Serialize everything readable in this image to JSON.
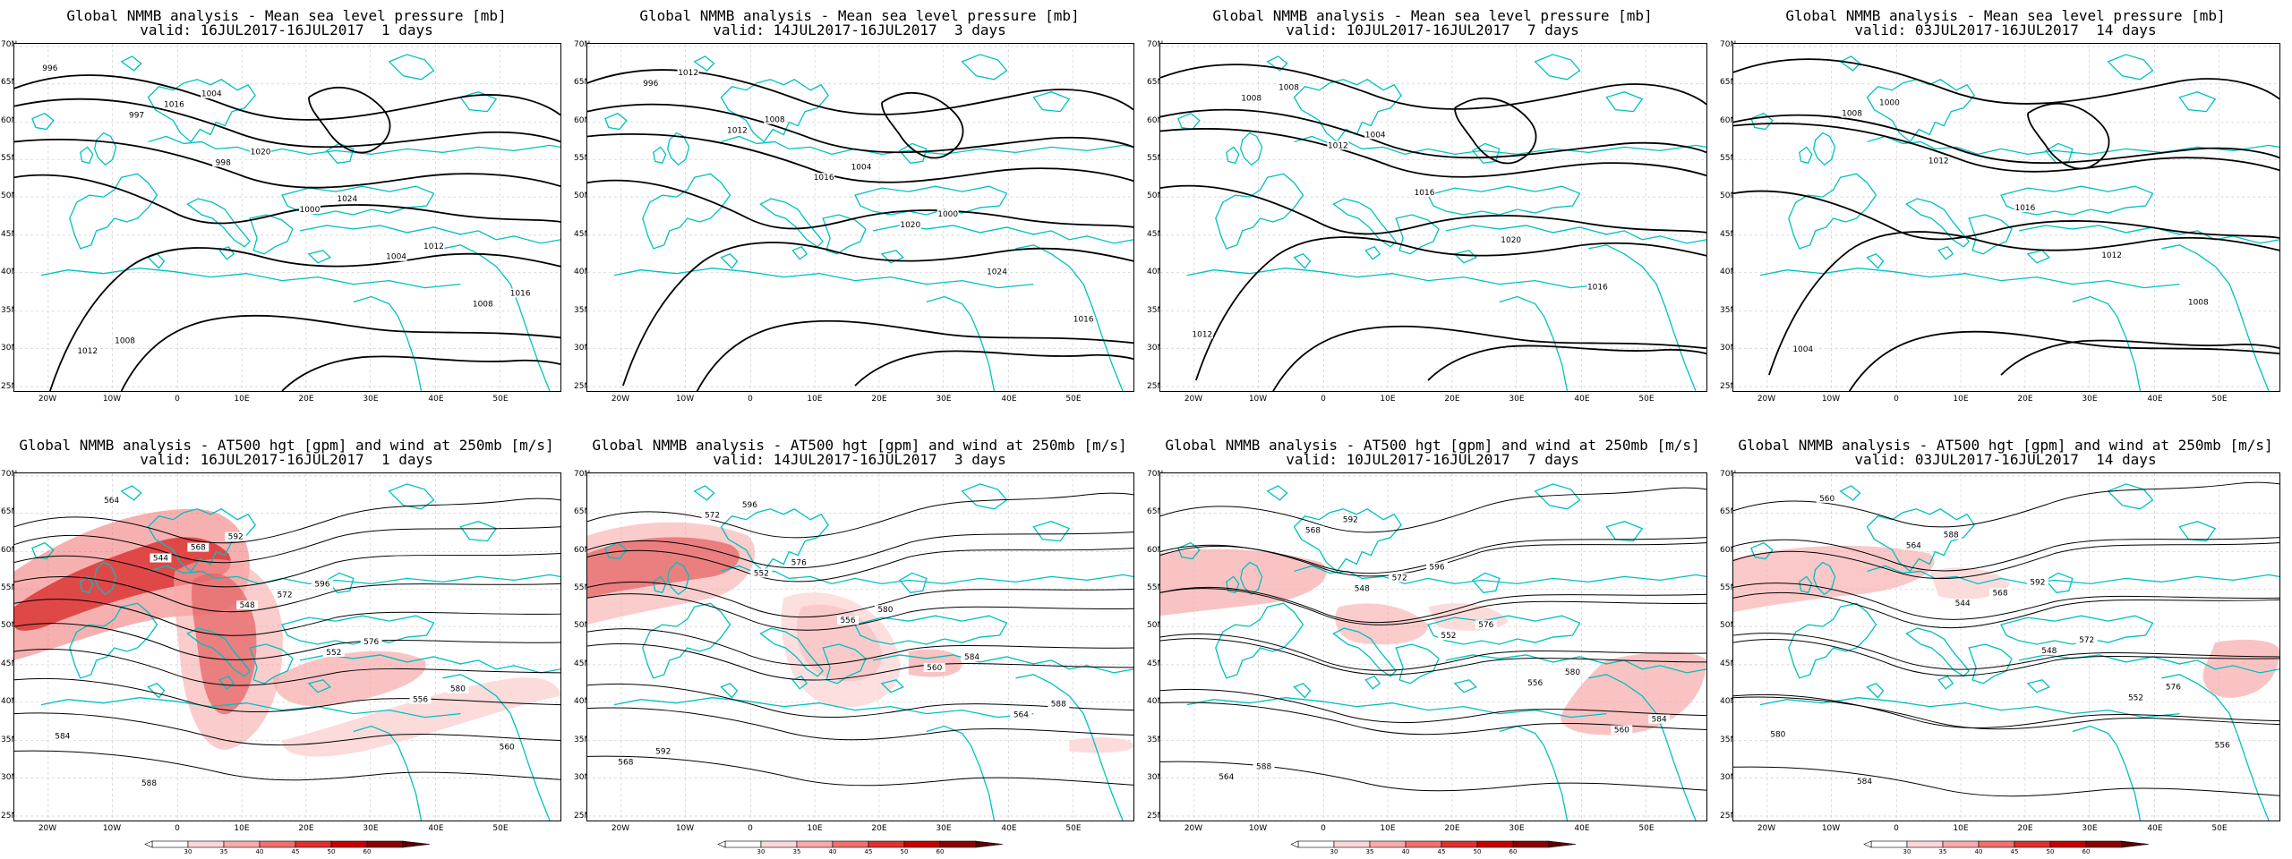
{
  "panels": [
    {
      "title": "Global NMMB analysis - Mean sea level pressure [mb]",
      "subtitle": "valid: 16JUL2017-16JUL2017  1 days",
      "kind": "mslp",
      "labels": [
        "996",
        "997",
        "998",
        "1000",
        "1004",
        "1008",
        "1012",
        "1016",
        "1020",
        "1024",
        "1012",
        "1016",
        "1008",
        "1004"
      ]
    },
    {
      "title": "Global NMMB analysis - Mean sea level pressure [mb]",
      "subtitle": "valid: 14JUL2017-16JUL2017  3 days",
      "kind": "mslp",
      "labels": [
        "996",
        "1012",
        "1016",
        "1020",
        "1024",
        "1016",
        "1012",
        "1008",
        "1004",
        "1000"
      ]
    },
    {
      "title": "Global NMMB analysis - Mean sea level pressure [mb]",
      "subtitle": "valid: 10JUL2017-16JUL2017  7 days",
      "kind": "mslp",
      "labels": [
        "1008",
        "1012",
        "1016",
        "1020",
        "1016",
        "1012",
        "1008",
        "1004"
      ]
    },
    {
      "title": "Global NMMB analysis - Mean sea level pressure [mb]",
      "subtitle": "valid: 03JUL2017-16JUL2017  14 days",
      "kind": "mslp",
      "labels": [
        "1008",
        "1012",
        "1016",
        "1012",
        "1008",
        "1004",
        "1000"
      ]
    },
    {
      "title": "Global NMMB analysis - AT500 hgt [gpm] and wind at 250mb [m/s]",
      "subtitle": "valid: 16JUL2017-16JUL2017  1 days",
      "kind": "z500",
      "labels": [
        "544",
        "548",
        "552",
        "556",
        "560",
        "564",
        "568",
        "572",
        "576",
        "580",
        "584",
        "588",
        "592",
        "596"
      ]
    },
    {
      "title": "Global NMMB analysis - AT500 hgt [gpm] and wind at 250mb [m/s]",
      "subtitle": "valid: 14JUL2017-16JUL2017  3 days",
      "kind": "z500",
      "labels": [
        "552",
        "556",
        "560",
        "564",
        "568",
        "572",
        "576",
        "580",
        "584",
        "588",
        "592",
        "596"
      ]
    },
    {
      "title": "Global NMMB analysis - AT500 hgt [gpm] and wind at 250mb [m/s]",
      "subtitle": "valid: 10JUL2017-16JUL2017  7 days",
      "kind": "z500",
      "labels": [
        "548",
        "552",
        "556",
        "560",
        "564",
        "568",
        "572",
        "576",
        "580",
        "584",
        "588",
        "592",
        "596"
      ]
    },
    {
      "title": "Global NMMB analysis - AT500 hgt [gpm] and wind at 250mb [m/s]",
      "subtitle": "valid: 03JUL2017-16JUL2017  14 days",
      "kind": "z500",
      "labels": [
        "544",
        "548",
        "552",
        "556",
        "560",
        "564",
        "568",
        "572",
        "576",
        "580",
        "584",
        "588",
        "592"
      ]
    }
  ],
  "map_axes": {
    "lon_labels": [
      "20W",
      "10W",
      "0",
      "10E",
      "20E",
      "30E",
      "40E",
      "50E"
    ],
    "lat_labels": [
      "70N",
      "65N",
      "60N",
      "55N",
      "50N",
      "45N",
      "40N",
      "35N",
      "30N",
      "25N"
    ]
  },
  "colorbar": {
    "ticks": [
      "30",
      "35",
      "40",
      "45",
      "50",
      "60"
    ],
    "colors": [
      "#ffffff",
      "#fcd7d7",
      "#f8aaaa",
      "#f07070",
      "#e03030",
      "#c80000",
      "#8b0000"
    ]
  },
  "colors": {
    "coast": "#00c0c0",
    "contour": "#000000",
    "jet": "#e00000"
  }
}
